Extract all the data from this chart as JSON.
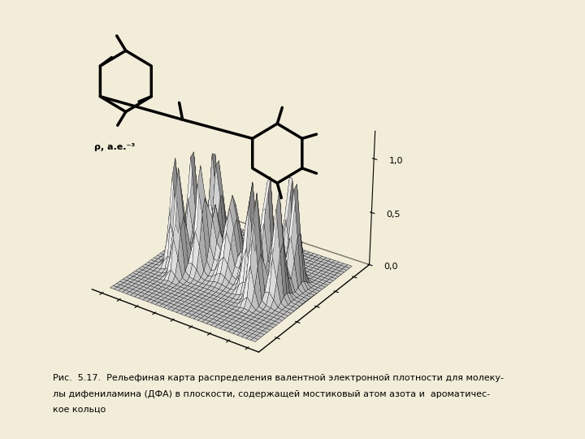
{
  "caption_line1": "Рис.  5.17.  Рельефиная карта распределения валентной электронной плотности для молеку-",
  "caption_line2": "лы дифениламина (ДФА) в плоскости, содержащей мостиковый атом азота и  ароматичес-",
  "caption_line3": "кое кольцо",
  "ylabel": "ρ, а.е.⁻³",
  "ytick_labels": [
    "0,0",
    "0,5",
    "1,0"
  ],
  "ytick_vals": [
    0.0,
    0.5,
    1.0
  ],
  "background_color": "#f2edd8",
  "surface_color": "white",
  "edge_color": "black",
  "grid_nx": 35,
  "grid_ny": 35,
  "zlim": [
    0,
    1.25
  ],
  "elev": 28,
  "azim": -55
}
